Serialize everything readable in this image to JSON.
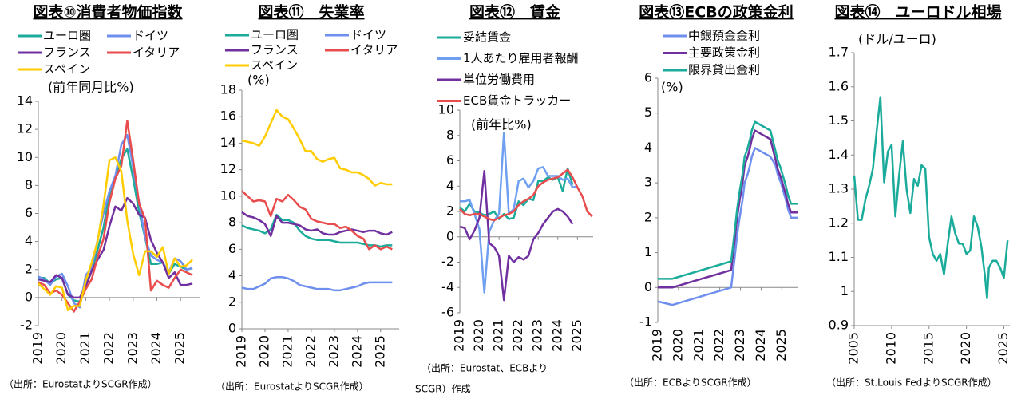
{
  "chart_data": [
    {
      "type": "line",
      "title": "図表⑩消費者物価指数",
      "y_label": "(前年同月比%)",
      "x": [
        2019,
        2019.25,
        2019.5,
        2019.75,
        2020,
        2020.25,
        2020.5,
        2020.75,
        2021,
        2021.25,
        2021.5,
        2021.75,
        2022,
        2022.25,
        2022.5,
        2022.75,
        2023,
        2023.25,
        2023.5,
        2023.75,
        2024,
        2024.25,
        2024.5,
        2024.75,
        2025,
        2025.25,
        2025.5
      ],
      "xlim": [
        2019,
        2025.8
      ],
      "xticks": [
        2019,
        2020,
        2021,
        2022,
        2023,
        2024,
        2025
      ],
      "ylim": [
        -2,
        14
      ],
      "yticks": [
        -2,
        0,
        2,
        4,
        6,
        8,
        10,
        12,
        14
      ],
      "series": [
        {
          "name": "ユーロ圏",
          "color": "#1aab9b",
          "values": [
            1.4,
            1.4,
            1.0,
            1.3,
            1.4,
            0.2,
            -0.2,
            -0.3,
            0.9,
            1.9,
            3.4,
            5.0,
            7.4,
            8.6,
            9.9,
            10.6,
            8.5,
            6.1,
            4.3,
            2.4,
            2.4,
            2.5,
            1.7,
            2.4,
            2.2,
            2.0,
            2.1
          ]
        },
        {
          "name": "ドイツ",
          "color": "#6f8fef",
          "values": [
            1.5,
            1.3,
            0.9,
            1.5,
            1.7,
            0.8,
            -0.4,
            -0.7,
            1.6,
            2.1,
            4.1,
            6.0,
            7.6,
            8.7,
            10.9,
            11.6,
            9.3,
            6.8,
            4.3,
            3.0,
            2.7,
            2.5,
            1.8,
            2.8,
            2.6,
            2.0,
            2.1
          ]
        },
        {
          "name": "フランス",
          "color": "#7030a0",
          "values": [
            1.3,
            1.2,
            1.1,
            1.6,
            1.4,
            0.2,
            0.0,
            0.0,
            0.8,
            1.9,
            2.7,
            3.4,
            5.1,
            6.5,
            6.2,
            7.1,
            6.7,
            5.9,
            5.7,
            4.1,
            3.2,
            2.5,
            1.4,
            1.8,
            0.9,
            0.9,
            1.0
          ]
        },
        {
          "name": "イタリア",
          "color": "#e84c4c",
          "values": [
            1.1,
            0.9,
            0.3,
            0.5,
            0.2,
            -0.4,
            -1.0,
            -0.3,
            0.6,
            1.3,
            2.9,
            4.2,
            6.8,
            8.5,
            9.4,
            12.6,
            9.8,
            6.7,
            5.6,
            0.5,
            1.2,
            0.9,
            0.7,
            1.4,
            2.0,
            1.8,
            1.6
          ]
        },
        {
          "name": "スペイン",
          "color": "#ffcc00",
          "values": [
            1.0,
            0.6,
            0.2,
            0.8,
            0.7,
            -0.9,
            -0.6,
            -0.6,
            1.2,
            2.5,
            4.0,
            6.6,
            9.8,
            10.0,
            9.0,
            5.5,
            3.1,
            1.6,
            3.3,
            3.3,
            2.9,
            3.6,
            1.7,
            2.8,
            2.2,
            2.3,
            2.7
          ]
        }
      ],
      "source": [
        "（出所：EurostatよりSCGR作成）"
      ]
    },
    {
      "type": "line",
      "title": "図表⑪　失業率",
      "y_label": "(%)",
      "x": [
        2019,
        2019.25,
        2019.5,
        2019.75,
        2020,
        2020.25,
        2020.5,
        2020.75,
        2021,
        2021.25,
        2021.5,
        2021.75,
        2022,
        2022.25,
        2022.5,
        2022.75,
        2023,
        2023.25,
        2023.5,
        2023.75,
        2024,
        2024.25,
        2024.5,
        2024.75,
        2025,
        2025.25,
        2025.5
      ],
      "xlim": [
        2019,
        2025.8
      ],
      "xticks": [
        2019,
        2020,
        2021,
        2022,
        2023,
        2024,
        2025
      ],
      "ylim": [
        0,
        18
      ],
      "yticks": [
        0,
        2,
        4,
        6,
        8,
        10,
        12,
        14,
        16,
        18
      ],
      "series": [
        {
          "name": "ユーロ圏",
          "color": "#1aab9b",
          "values": [
            7.8,
            7.6,
            7.5,
            7.4,
            7.2,
            7.5,
            8.6,
            8.2,
            8.2,
            8.0,
            7.4,
            7.0,
            6.8,
            6.7,
            6.7,
            6.7,
            6.6,
            6.5,
            6.5,
            6.5,
            6.5,
            6.4,
            6.3,
            6.3,
            6.2,
            6.3,
            6.3
          ]
        },
        {
          "name": "ドイツ",
          "color": "#6f8fef",
          "values": [
            3.1,
            3.0,
            3.0,
            3.2,
            3.4,
            3.8,
            3.9,
            3.9,
            3.8,
            3.6,
            3.3,
            3.2,
            3.1,
            3.0,
            3.0,
            3.0,
            2.9,
            2.9,
            3.0,
            3.1,
            3.2,
            3.4,
            3.5,
            3.5,
            3.5,
            3.5,
            3.5
          ]
        },
        {
          "name": "フランス",
          "color": "#7030a0",
          "values": [
            8.8,
            8.5,
            8.4,
            8.2,
            7.9,
            7.0,
            8.5,
            8.0,
            8.0,
            7.9,
            7.8,
            7.5,
            7.4,
            7.5,
            7.2,
            7.1,
            7.1,
            7.3,
            7.4,
            7.5,
            7.4,
            7.3,
            7.4,
            7.4,
            7.2,
            7.1,
            7.3
          ]
        },
        {
          "name": "イタリア",
          "color": "#e84c4c",
          "values": [
            10.4,
            10.0,
            9.6,
            9.7,
            9.6,
            8.5,
            9.8,
            9.6,
            10.1,
            9.7,
            9.2,
            9.0,
            8.3,
            8.1,
            8.0,
            7.9,
            7.9,
            7.6,
            7.7,
            7.4,
            7.0,
            6.8,
            6.0,
            6.3,
            6.0,
            6.2,
            6.0
          ]
        },
        {
          "name": "スペイン",
          "color": "#ffcc00",
          "values": [
            14.2,
            14.1,
            14.0,
            13.8,
            14.5,
            15.5,
            16.5,
            16.0,
            15.8,
            15.1,
            14.3,
            13.4,
            13.4,
            12.8,
            12.6,
            12.8,
            12.9,
            12.1,
            12.0,
            11.8,
            11.8,
            11.6,
            11.3,
            10.8,
            11.0,
            10.9,
            10.9
          ]
        }
      ],
      "source": [
        "（出所：EurostatよりSCGR作成）"
      ]
    },
    {
      "type": "line",
      "title": "図表⑫　賃金",
      "y_label": "(前年比%)",
      "x": [
        2019,
        2019.25,
        2019.5,
        2019.75,
        2020,
        2020.25,
        2020.5,
        2020.75,
        2021,
        2021.25,
        2021.5,
        2021.75,
        2022,
        2022.25,
        2022.5,
        2022.75,
        2023,
        2023.25,
        2023.5,
        2023.75,
        2024,
        2024.25,
        2024.5,
        2024.75,
        2025,
        2025.25,
        2025.5,
        2025.75
      ],
      "xlim": [
        2019,
        2025.8
      ],
      "xticks": [
        2019,
        2020,
        2021,
        2022,
        2023,
        2024,
        2025
      ],
      "ylim": [
        -6,
        10
      ],
      "yticks": [
        -6,
        -4,
        -2,
        0,
        2,
        4,
        6,
        8,
        10
      ],
      "series": [
        {
          "name": "妥結賃金",
          "color": "#1aab9b",
          "values": [
            2.3,
            2.0,
            2.6,
            2.0,
            1.9,
            1.7,
            1.8,
            2.0,
            1.4,
            1.8,
            1.4,
            1.5,
            2.8,
            2.5,
            3.0,
            2.9,
            4.4,
            4.4,
            4.7,
            4.5,
            4.7,
            3.6,
            5.4,
            4.1,
            null,
            null,
            null,
            null
          ]
        },
        {
          "name": "1人あたり雇用者報酬",
          "color": "#6f9ff0",
          "values": [
            2.8,
            2.8,
            2.9,
            1.8,
            0.6,
            -4.4,
            0.4,
            1.3,
            1.8,
            8.2,
            1.8,
            2.2,
            4.4,
            4.6,
            3.9,
            4.4,
            5.4,
            5.5,
            4.8,
            4.8,
            4.8,
            4.5,
            4.6,
            3.9,
            4.0,
            null,
            null,
            null
          ]
        },
        {
          "name": "単位労働費用",
          "color": "#7030a0",
          "values": [
            0.8,
            0.7,
            -0.2,
            0.5,
            1.5,
            5.2,
            -0.5,
            -0.8,
            -1.5,
            -5.0,
            -1.5,
            -2.0,
            -1.6,
            -1.8,
            -1.5,
            -0.2,
            0.3,
            1.0,
            1.5,
            2.0,
            2.2,
            2.0,
            1.6,
            1.0,
            null,
            null,
            null,
            null
          ]
        },
        {
          "name": "ECB賃金トラッカー",
          "color": "#e84c4c",
          "values": [
            2.2,
            1.8,
            1.7,
            1.8,
            1.8,
            1.6,
            1.4,
            1.3,
            1.5,
            1.7,
            1.8,
            2.0,
            2.5,
            2.8,
            3.0,
            3.3,
            4.0,
            4.3,
            4.5,
            4.6,
            4.7,
            5.0,
            5.3,
            4.7,
            3.9,
            3.2,
            2.0,
            1.6
          ]
        }
      ],
      "source": [
        "（出所：Eurostat、ECBより",
        "SCGR）作成"
      ]
    },
    {
      "type": "line",
      "title": "図表⑬ECBの政策金利",
      "y_label": "(%)",
      "x": [
        2019,
        2019.7,
        2022.55,
        2022.7,
        2022.84,
        2022.96,
        2023.1,
        2023.2,
        2023.35,
        2023.46,
        2023.55,
        2023.7,
        2024.45,
        2024.7,
        2024.8,
        2024.96,
        2025.08,
        2025.2,
        2025.3,
        2025.45,
        2025.8
      ],
      "xlim": [
        2019,
        2025.8
      ],
      "xticks": [
        2019,
        2020,
        2021,
        2022,
        2023,
        2024,
        2025
      ],
      "ylim": [
        -1,
        6
      ],
      "yticks": [
        -1,
        0,
        1,
        2,
        3,
        4,
        5,
        6
      ],
      "series": [
        {
          "name": "中銀預金金利",
          "color": "#6f8fef",
          "values": [
            -0.4,
            -0.5,
            0,
            0.75,
            1.5,
            2,
            2.5,
            3,
            3.25,
            3.5,
            3.75,
            4,
            3.75,
            3.5,
            3.25,
            3,
            2.75,
            2.5,
            2.25,
            2,
            2
          ]
        },
        {
          "name": "主要政策金利",
          "color": "#7030a0",
          "values": [
            0,
            0,
            0.5,
            1.25,
            2,
            2.5,
            3,
            3.5,
            3.75,
            4,
            4.25,
            4.5,
            4.25,
            3.65,
            3.4,
            3.15,
            2.9,
            2.65,
            2.4,
            2.15,
            2.15
          ]
        },
        {
          "name": "限界貸出金利",
          "color": "#1aab9b",
          "values": [
            0.25,
            0.25,
            0.75,
            1.5,
            2.25,
            2.75,
            3.25,
            3.75,
            4,
            4.25,
            4.5,
            4.75,
            4.5,
            3.9,
            3.65,
            3.4,
            3.15,
            2.9,
            2.65,
            2.4,
            2.4
          ]
        }
      ],
      "source": [
        "（出所：ECBよりSCGR作成）"
      ]
    },
    {
      "type": "line",
      "title": "図表⑭　ユーロドル相場",
      "y_label": "(ドル/ユーロ)",
      "x": [
        2005,
        2005.5,
        2006,
        2006.5,
        2007,
        2007.5,
        2008,
        2008.5,
        2009,
        2009.5,
        2010,
        2010.5,
        2011,
        2011.5,
        2012,
        2012.5,
        2013,
        2013.5,
        2014,
        2014.5,
        2015,
        2015.5,
        2016,
        2016.5,
        2017,
        2017.5,
        2018,
        2018.5,
        2019,
        2019.5,
        2020,
        2020.5,
        2021,
        2021.5,
        2022,
        2022.5,
        2022.75,
        2023,
        2023.5,
        2024,
        2024.5,
        2025,
        2025.5
      ],
      "xlim": [
        2005,
        2025.8
      ],
      "xticks": [
        2005,
        2010,
        2015,
        2020,
        2025
      ],
      "ylim": [
        0.9,
        1.7
      ],
      "yticks": [
        0.9,
        1,
        1.1,
        1.2,
        1.3,
        1.4,
        1.5,
        1.6,
        1.7
      ],
      "series": [
        {
          "color": "#1aab9b",
          "values": [
            1.34,
            1.21,
            1.21,
            1.27,
            1.31,
            1.36,
            1.47,
            1.57,
            1.32,
            1.41,
            1.43,
            1.22,
            1.34,
            1.44,
            1.3,
            1.23,
            1.33,
            1.31,
            1.37,
            1.36,
            1.16,
            1.11,
            1.09,
            1.11,
            1.05,
            1.14,
            1.22,
            1.17,
            1.14,
            1.14,
            1.11,
            1.12,
            1.22,
            1.19,
            1.13,
            1.04,
            0.98,
            1.07,
            1.09,
            1.09,
            1.07,
            1.04,
            1.15
          ]
        }
      ],
      "source": [
        "（出所：St.Louis FedよりSCGR作成）"
      ]
    }
  ]
}
